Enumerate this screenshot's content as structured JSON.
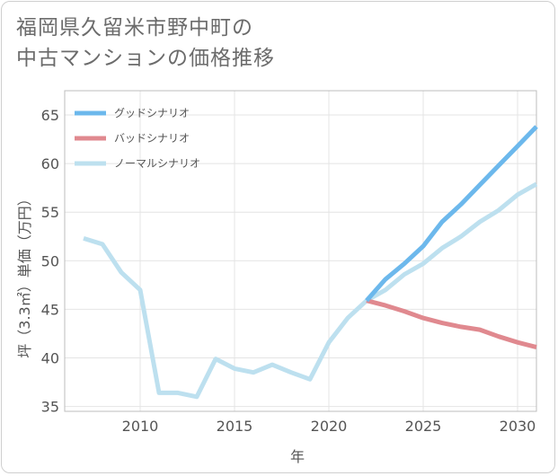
{
  "title_line1": "福岡県久留米市野中町の",
  "title_line2": "中古マンションの価格推移",
  "chart_data": {
    "type": "line",
    "xlabel": "年",
    "ylabel": "坪（3.3㎡）単価（万円）",
    "xlim": [
      2006,
      2031
    ],
    "ylim": [
      34.5,
      67.5
    ],
    "xticks": [
      2010,
      2015,
      2020,
      2025,
      2030
    ],
    "yticks": [
      35,
      40,
      45,
      50,
      55,
      60,
      65
    ],
    "grid": true,
    "legend_position": "top-left",
    "series": [
      {
        "name": "グッドシナリオ",
        "color": "#6cb8ec",
        "x": [
          2022,
          2023,
          2024,
          2025,
          2026,
          2027,
          2028,
          2029,
          2030,
          2031
        ],
        "values": [
          45.9,
          48.1,
          49.7,
          51.5,
          54.0,
          55.8,
          57.8,
          59.8,
          61.8,
          63.8
        ]
      },
      {
        "name": "バッドシナリオ",
        "color": "#e0898f",
        "x": [
          2022,
          2023,
          2024,
          2025,
          2026,
          2027,
          2028,
          2029,
          2030,
          2031
        ],
        "values": [
          45.9,
          45.4,
          44.8,
          44.1,
          43.6,
          43.2,
          42.9,
          42.2,
          41.6,
          41.1
        ]
      },
      {
        "name": "ノーマルシナリオ",
        "color": "#bde0ef",
        "x": [
          2007,
          2008,
          2009,
          2010,
          2011,
          2012,
          2013,
          2014,
          2015,
          2016,
          2017,
          2018,
          2019,
          2020,
          2021,
          2022,
          2023,
          2024,
          2025,
          2026,
          2027,
          2028,
          2029,
          2030,
          2031
        ],
        "values": [
          52.3,
          51.7,
          48.8,
          47.0,
          36.4,
          36.4,
          36.0,
          39.9,
          38.9,
          38.5,
          39.3,
          38.5,
          37.8,
          41.6,
          44.1,
          45.9,
          47.0,
          48.6,
          49.7,
          51.3,
          52.5,
          54.0,
          55.2,
          56.8,
          57.9
        ]
      }
    ]
  }
}
